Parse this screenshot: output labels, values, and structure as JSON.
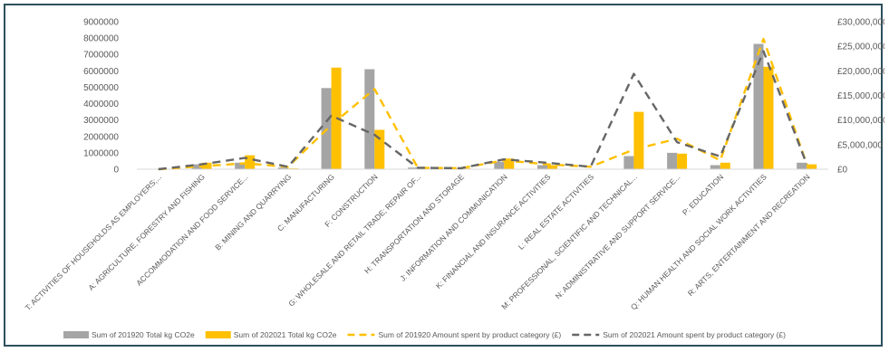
{
  "chart_data": {
    "type": "bar",
    "title": "",
    "categories": [
      "T: ACTIVITIES OF HOUSEHOLDS AS EMPLOYERS;...",
      "A: AGRICULTURE, FORESTRY AND FISHING",
      "ACCOMMODATION AND FOOD SERVICE...",
      "B: MINING AND QUARRYING",
      "C: MANUFACTURING",
      "F: CONSTRUCTION",
      "G: WHOLESALE AND RETAIL TRADE; REPAIR OF...",
      "H: TRANSPORTATION AND STORAGE",
      "J: INFORMATION AND COMMUNICATION",
      "K: FINANCIAL AND INSURANCE ACTIVITIES",
      "L: REAL ESTATE ACTIVITIES",
      "M: PROFESSIONAL, SCIENTIFIC AND TECHNICAL...",
      "N: ADMINISTRATIVE AND SUPPORT SERVICE...",
      "P: EDUCATION",
      "Q: HUMAN HEALTH AND SOCIAL WORK ACTIVITIES",
      "R: ARTS, ENTERTAINMENT AND RECREATION"
    ],
    "y_left_ticks": [
      "0",
      "1000000",
      "2000000",
      "3000000",
      "4000000",
      "5000000",
      "6000000",
      "7000000",
      "8000000",
      "9000000"
    ],
    "y_right_ticks": [
      "£0",
      "£5,000,000",
      "£10,000,000",
      "£15,000,000",
      "£20,000,000",
      "£25,000,000",
      "£30,000,000"
    ],
    "ylim_left": [
      0,
      9000000
    ],
    "ylim_right": [
      0,
      30000000
    ],
    "series": [
      {
        "name": "Sum of 201920 Total kg CO2e",
        "kind": "bar",
        "axis": "left",
        "color": "#a5a5a5",
        "values": [
          0,
          300000,
          400000,
          100000,
          4950000,
          6100000,
          100000,
          50000,
          450000,
          250000,
          0,
          800000,
          1000000,
          250000,
          7650000,
          400000
        ]
      },
      {
        "name": "Sum of 202021 Total kg CO2e",
        "kind": "bar",
        "axis": "left",
        "color": "#ffc000",
        "values": [
          0,
          400000,
          850000,
          50000,
          6200000,
          2400000,
          50000,
          50000,
          650000,
          250000,
          0,
          3500000,
          950000,
          400000,
          6250000,
          300000
        ]
      },
      {
        "name": "Sum of 201920 Amount spent by product category (£)",
        "kind": "line",
        "style": "dashed",
        "axis": "right",
        "color": "#ffc000",
        "values": [
          0,
          600000,
          1200000,
          500000,
          9000000,
          16300000,
          300000,
          200000,
          1800000,
          1000000,
          500000,
          4000000,
          6200000,
          1800000,
          26500000,
          1000000
        ]
      },
      {
        "name": "Sum of 202021 Amount spent by product category (£)",
        "kind": "line",
        "style": "dashed",
        "axis": "right",
        "color": "#666666",
        "values": [
          0,
          1000000,
          2300000,
          500000,
          10900000,
          7000000,
          300000,
          200000,
          2000000,
          1300000,
          500000,
          19400000,
          5500000,
          2600000,
          24000000,
          1000000
        ]
      }
    ],
    "grid": false,
    "legend": "bottom"
  }
}
